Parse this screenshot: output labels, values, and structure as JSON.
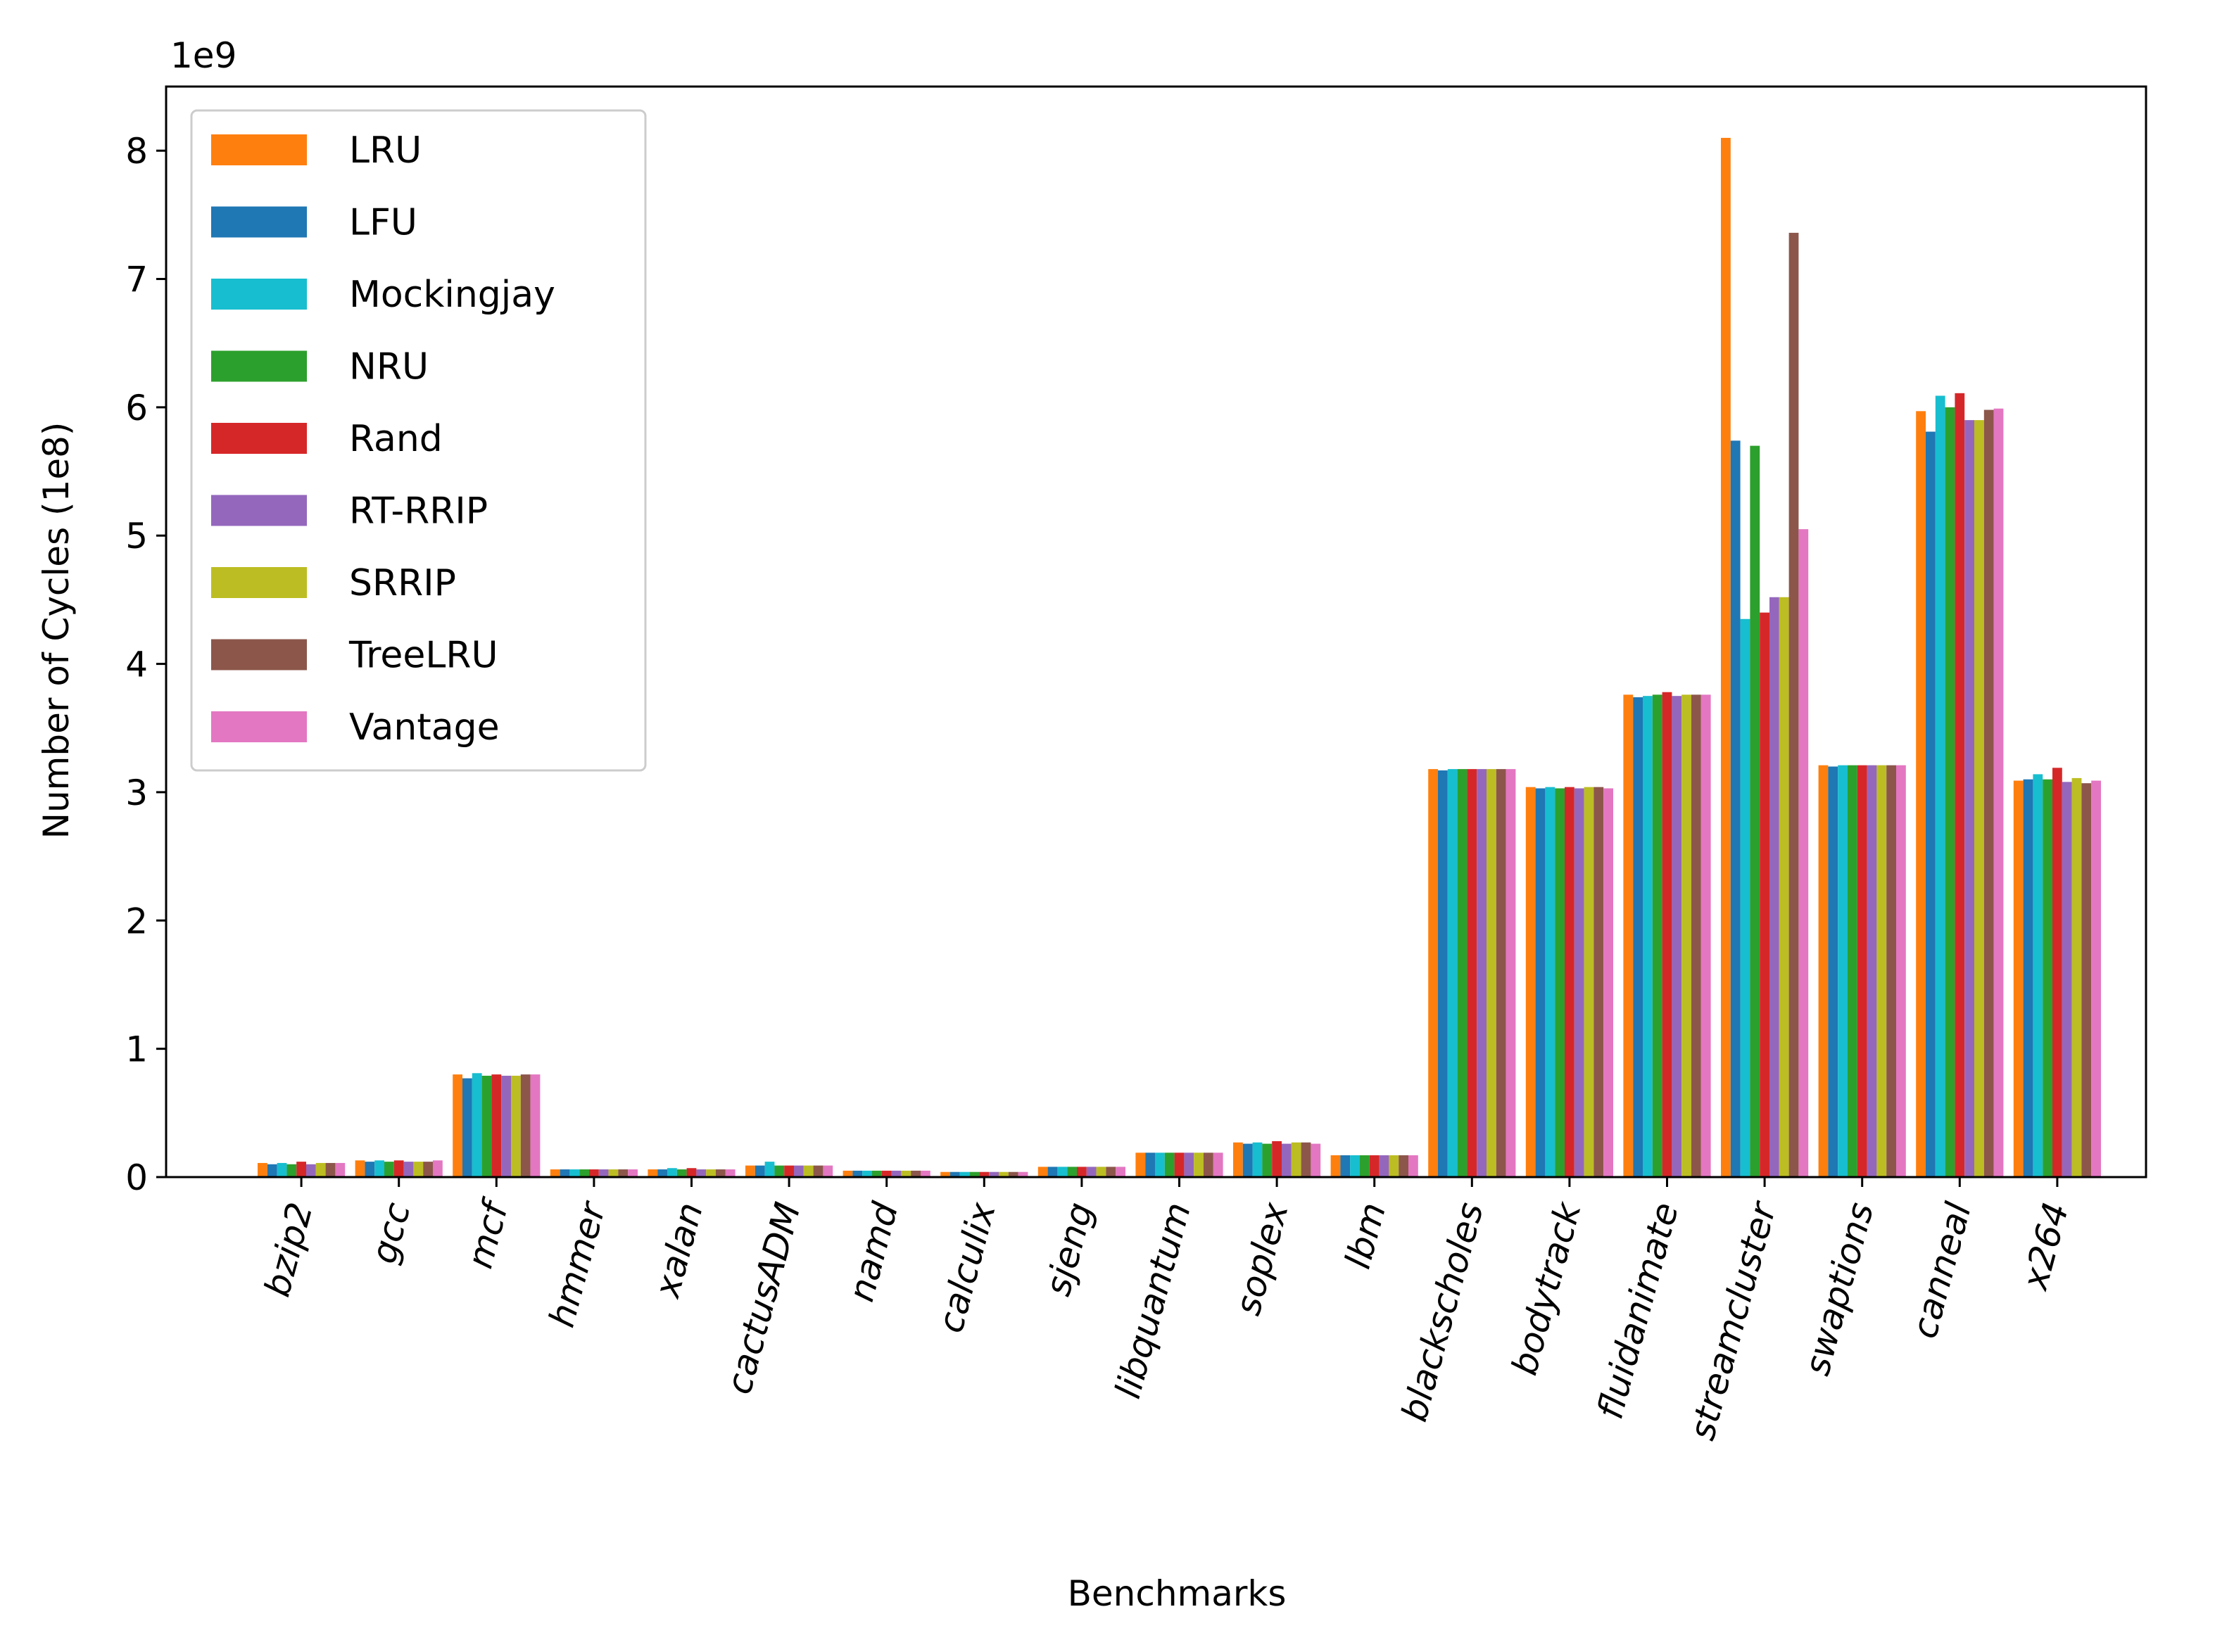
{
  "chart_data": {
    "type": "bar",
    "xlabel": "Benchmarks",
    "ylabel": "Number of Cycles (1e8)",
    "offset_label": "1e9",
    "ylim": [
      0,
      0.85
    ],
    "yticks": [
      0,
      0.1,
      0.2,
      0.3,
      0.4,
      0.5,
      0.6,
      0.7,
      0.8
    ],
    "ytick_labels": [
      "0",
      "1",
      "2",
      "3",
      "4",
      "5",
      "6",
      "7",
      "8"
    ],
    "grid": false,
    "legend_position": "upper-left",
    "categories": [
      "bzip2",
      "gcc",
      "mcf",
      "hmmer",
      "xalan",
      "cactusADM",
      "namd",
      "calculix",
      "sjeng",
      "libquantum",
      "soplex",
      "lbm",
      "blackscholes",
      "bodytrack",
      "fluidanimate",
      "streamcluster",
      "swaptions",
      "canneal",
      "x264"
    ],
    "series": [
      {
        "name": "LRU",
        "color": "#ff7f0e",
        "values": [
          0.011,
          0.013,
          0.08,
          0.006,
          0.006,
          0.009,
          0.005,
          0.004,
          0.008,
          0.019,
          0.027,
          0.017,
          0.318,
          0.304,
          0.376,
          0.81,
          0.321,
          0.597,
          0.309
        ]
      },
      {
        "name": "LFU",
        "color": "#1f77b4",
        "values": [
          0.01,
          0.012,
          0.077,
          0.006,
          0.006,
          0.009,
          0.005,
          0.004,
          0.008,
          0.019,
          0.026,
          0.017,
          0.317,
          0.303,
          0.374,
          0.574,
          0.32,
          0.581,
          0.31
        ]
      },
      {
        "name": "Mockingjay",
        "color": "#17becf",
        "values": [
          0.011,
          0.013,
          0.081,
          0.006,
          0.007,
          0.012,
          0.005,
          0.004,
          0.008,
          0.019,
          0.027,
          0.017,
          0.318,
          0.304,
          0.375,
          0.435,
          0.321,
          0.609,
          0.314
        ]
      },
      {
        "name": "NRU",
        "color": "#2ca02c",
        "values": [
          0.01,
          0.012,
          0.079,
          0.006,
          0.006,
          0.009,
          0.005,
          0.004,
          0.008,
          0.019,
          0.026,
          0.017,
          0.318,
          0.303,
          0.376,
          0.57,
          0.321,
          0.6,
          0.31
        ]
      },
      {
        "name": "Rand",
        "color": "#d62728",
        "values": [
          0.012,
          0.013,
          0.08,
          0.006,
          0.007,
          0.009,
          0.005,
          0.004,
          0.008,
          0.019,
          0.028,
          0.017,
          0.318,
          0.304,
          0.378,
          0.44,
          0.321,
          0.611,
          0.319
        ]
      },
      {
        "name": "RT-RRIP",
        "color": "#9467bd",
        "values": [
          0.01,
          0.012,
          0.079,
          0.006,
          0.006,
          0.009,
          0.005,
          0.004,
          0.008,
          0.019,
          0.026,
          0.017,
          0.318,
          0.303,
          0.375,
          0.452,
          0.321,
          0.59,
          0.308
        ]
      },
      {
        "name": "SRRIP",
        "color": "#bcbd22",
        "values": [
          0.011,
          0.012,
          0.079,
          0.006,
          0.006,
          0.009,
          0.005,
          0.004,
          0.008,
          0.019,
          0.027,
          0.017,
          0.318,
          0.304,
          0.376,
          0.452,
          0.321,
          0.59,
          0.311
        ]
      },
      {
        "name": "TreeLRU",
        "color": "#8c564b",
        "values": [
          0.011,
          0.012,
          0.08,
          0.006,
          0.006,
          0.009,
          0.005,
          0.004,
          0.008,
          0.019,
          0.027,
          0.017,
          0.318,
          0.304,
          0.376,
          0.736,
          0.321,
          0.598,
          0.307
        ]
      },
      {
        "name": "Vantage",
        "color": "#e377c2",
        "values": [
          0.011,
          0.013,
          0.08,
          0.006,
          0.006,
          0.009,
          0.005,
          0.004,
          0.008,
          0.019,
          0.026,
          0.017,
          0.318,
          0.303,
          0.376,
          0.505,
          0.321,
          0.599,
          0.309
        ]
      }
    ]
  }
}
